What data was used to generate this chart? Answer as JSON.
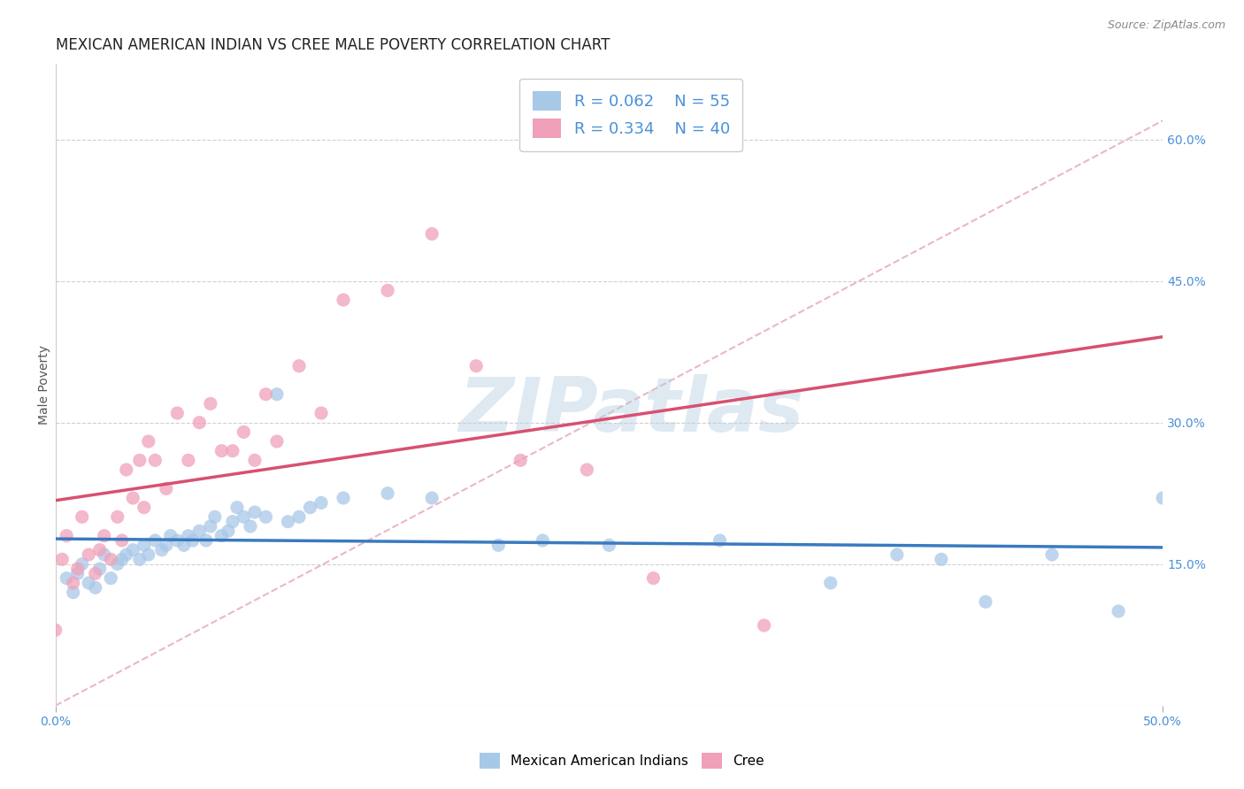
{
  "title": "MEXICAN AMERICAN INDIAN VS CREE MALE POVERTY CORRELATION CHART",
  "source_text": "Source: ZipAtlas.com",
  "ylabel": "Male Poverty",
  "xlim": [
    0.0,
    0.5
  ],
  "ylim": [
    0.0,
    0.68
  ],
  "xticks": [
    0.0,
    0.5
  ],
  "xticklabels": [
    "0.0%",
    "50.0%"
  ],
  "yticks_right": [
    0.15,
    0.3,
    0.45,
    0.6
  ],
  "ytick_right_labels": [
    "15.0%",
    "30.0%",
    "45.0%",
    "60.0%"
  ],
  "legend_r1": "R = 0.062",
  "legend_n1": "N = 55",
  "legend_r2": "R = 0.334",
  "legend_n2": "N = 40",
  "color_blue": "#a8c8e8",
  "color_pink": "#f0a0b8",
  "color_blue_line": "#3a7abf",
  "color_pink_line": "#d85070",
  "color_diag": "#e8b0c0",
  "watermark": "ZIPatlas",
  "blue_scatter_x": [
    0.005,
    0.008,
    0.01,
    0.012,
    0.015,
    0.018,
    0.02,
    0.022,
    0.025,
    0.028,
    0.03,
    0.032,
    0.035,
    0.038,
    0.04,
    0.042,
    0.045,
    0.048,
    0.05,
    0.052,
    0.055,
    0.058,
    0.06,
    0.062,
    0.065,
    0.068,
    0.07,
    0.072,
    0.075,
    0.078,
    0.08,
    0.082,
    0.085,
    0.088,
    0.09,
    0.095,
    0.1,
    0.105,
    0.11,
    0.115,
    0.12,
    0.13,
    0.15,
    0.17,
    0.2,
    0.22,
    0.25,
    0.3,
    0.35,
    0.38,
    0.4,
    0.42,
    0.45,
    0.48,
    0.5
  ],
  "blue_scatter_y": [
    0.135,
    0.12,
    0.14,
    0.15,
    0.13,
    0.125,
    0.145,
    0.16,
    0.135,
    0.15,
    0.155,
    0.16,
    0.165,
    0.155,
    0.17,
    0.16,
    0.175,
    0.165,
    0.17,
    0.18,
    0.175,
    0.17,
    0.18,
    0.175,
    0.185,
    0.175,
    0.19,
    0.2,
    0.18,
    0.185,
    0.195,
    0.21,
    0.2,
    0.19,
    0.205,
    0.2,
    0.33,
    0.195,
    0.2,
    0.21,
    0.215,
    0.22,
    0.225,
    0.22,
    0.17,
    0.175,
    0.17,
    0.175,
    0.13,
    0.16,
    0.155,
    0.11,
    0.16,
    0.1,
    0.22
  ],
  "pink_scatter_x": [
    0.0,
    0.003,
    0.005,
    0.008,
    0.01,
    0.012,
    0.015,
    0.018,
    0.02,
    0.022,
    0.025,
    0.028,
    0.03,
    0.032,
    0.035,
    0.038,
    0.04,
    0.042,
    0.045,
    0.05,
    0.055,
    0.06,
    0.065,
    0.07,
    0.075,
    0.08,
    0.085,
    0.09,
    0.095,
    0.1,
    0.11,
    0.12,
    0.13,
    0.15,
    0.17,
    0.19,
    0.21,
    0.24,
    0.27,
    0.32
  ],
  "pink_scatter_y": [
    0.08,
    0.155,
    0.18,
    0.13,
    0.145,
    0.2,
    0.16,
    0.14,
    0.165,
    0.18,
    0.155,
    0.2,
    0.175,
    0.25,
    0.22,
    0.26,
    0.21,
    0.28,
    0.26,
    0.23,
    0.31,
    0.26,
    0.3,
    0.32,
    0.27,
    0.27,
    0.29,
    0.26,
    0.33,
    0.28,
    0.36,
    0.31,
    0.43,
    0.44,
    0.5,
    0.36,
    0.26,
    0.25,
    0.135,
    0.085
  ],
  "grid_color": "#d0d0d0",
  "background_color": "#ffffff",
  "title_fontsize": 12,
  "axis_label_fontsize": 10,
  "tick_fontsize": 10,
  "legend_fontsize": 13
}
